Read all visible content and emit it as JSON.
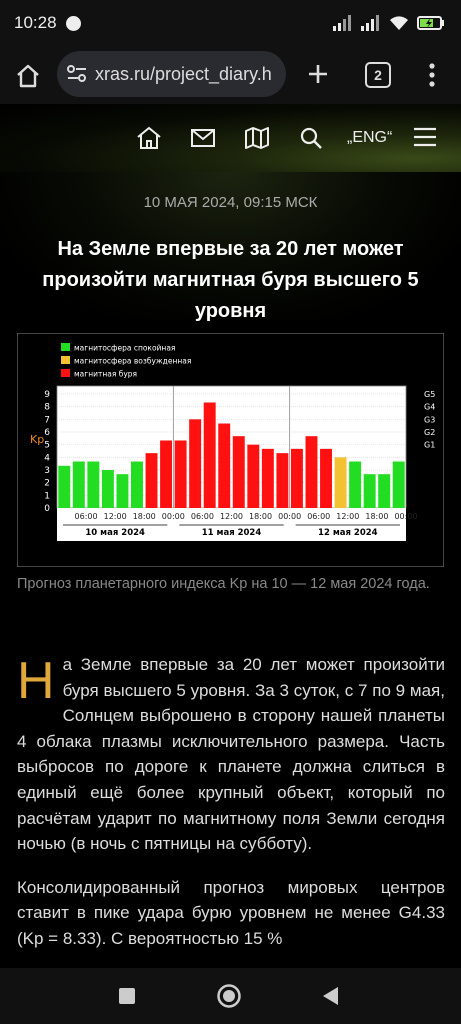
{
  "status": {
    "time": "10:28",
    "battery_icon": "battery-charging-icon"
  },
  "browser": {
    "url": "xras.ru/project_diary.h",
    "tab_count": "2"
  },
  "site_nav": {
    "lang": "ENG"
  },
  "article": {
    "date": "10 МАЯ 2024, 09:15 МСК",
    "title": "На Земле впервые за 20 лет может произойти магнитная буря высшего 5 уровня",
    "caption": "Прогноз планетарного индекса Kp на 10 — 12 мая 2024 года.",
    "dropcap": "Н",
    "p1": "а Земле впервые за 20 лет может произойти буря высшего 5 уровня. За 3 суток, с 7 по 9 мая, Солнцем выброшено в сторону нашей планеты 4 облака плазмы исключительного размера. Часть выбросов по дороге к планете должна слиться в единый ещё более крупный объект, который по расчётам ударит по магнитному поля Земли сегодня ночью (в ночь с пятницы на субботу).",
    "p2": "Консолидированный прогноз мировых центров ставит в пике удара бурю уровнем не менее G4.33 (Kp = 8.33). С вероятностью 15 %"
  },
  "chart_data": {
    "type": "bar",
    "ylabel": "Kp",
    "ylim": [
      0,
      9
    ],
    "y_ticks": [
      "0",
      "1",
      "2",
      "3",
      "4",
      "5",
      "6",
      "7",
      "8",
      "9"
    ],
    "right_ticks": [
      "G1",
      "G2",
      "G3",
      "G4",
      "G5"
    ],
    "time_ticks": [
      "06:00",
      "12:00",
      "18:00",
      "00:00"
    ],
    "days": [
      "10 мая 2024",
      "11 мая 2024",
      "12 мая 2024"
    ],
    "legend": [
      {
        "label": "магнитосфера спокойная",
        "color": "#22dd22"
      },
      {
        "label": "магнитосфера возбужденная",
        "color": "#f2c232"
      },
      {
        "label": "магнитная буря",
        "color": "#ff1111"
      }
    ],
    "values": [
      3.33,
      3.67,
      3.67,
      3.0,
      2.67,
      3.67,
      4.33,
      5.33,
      5.33,
      7.0,
      8.33,
      6.67,
      5.67,
      5.0,
      4.67,
      4.33,
      4.67,
      5.67,
      4.67,
      4.0,
      3.67,
      2.67,
      2.67,
      3.67
    ],
    "status": [
      "q",
      "q",
      "q",
      "q",
      "q",
      "q",
      "s",
      "s",
      "s",
      "s",
      "s",
      "s",
      "s",
      "s",
      "s",
      "s",
      "s",
      "s",
      "s",
      "a",
      "q",
      "q",
      "q",
      "q"
    ]
  }
}
